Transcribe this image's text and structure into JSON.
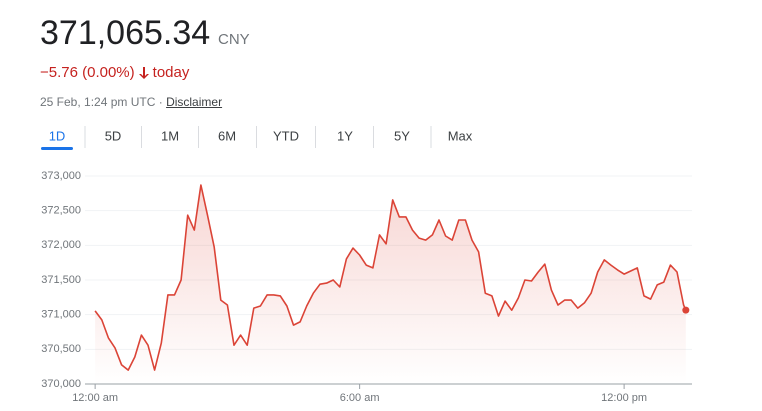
{
  "header": {
    "price": "371,065.34",
    "currency": "CNY",
    "change": "−5.76 (0.00%)",
    "period": "today",
    "timestamp": "25 Feb, 1:24 pm UTC ·",
    "disclaimer": "Disclaimer"
  },
  "tabs": [
    "1D",
    "5D",
    "1M",
    "6M",
    "YTD",
    "1Y",
    "5Y",
    "Max"
  ],
  "selected_tab": 0,
  "chart_data": {
    "type": "line",
    "color": "#db4437",
    "grid": true,
    "x": [
      0,
      0.15,
      0.3,
      0.45,
      0.6,
      0.75,
      0.9,
      1.05,
      1.2,
      1.35,
      1.5,
      1.65,
      1.8,
      1.95,
      2.1,
      2.25,
      2.4,
      2.55,
      2.7,
      2.85,
      3,
      3.15,
      3.3,
      3.45,
      3.6,
      3.75,
      3.9,
      4.05,
      4.2,
      4.35,
      4.5,
      4.65,
      4.8,
      4.95,
      5.1,
      5.25,
      5.4,
      5.55,
      5.7,
      5.85,
      6,
      6.15,
      6.3,
      6.45,
      6.6,
      6.75,
      6.9,
      7.05,
      7.2,
      7.35,
      7.5,
      7.65,
      7.8,
      7.95,
      8.1,
      8.25,
      8.4,
      8.55,
      8.7,
      8.85,
      9,
      9.15,
      9.3,
      9.45,
      9.6,
      9.75,
      9.9,
      10.05,
      10.2,
      10.35,
      10.5,
      10.65,
      10.8,
      10.95,
      11.1,
      11.25,
      11.4,
      11.55,
      11.7,
      11.85,
      12,
      12.15,
      12.3,
      12.45,
      12.6,
      12.75,
      12.9,
      13.05,
      13.2,
      13.35,
      13.4
    ],
    "values": [
      371055,
      370925,
      370665,
      370520,
      370275,
      370200,
      370390,
      370705,
      370560,
      370200,
      370590,
      371285,
      371285,
      371500,
      372435,
      372220,
      372870,
      372435,
      371975,
      371210,
      371140,
      370560,
      370705,
      370560,
      371095,
      371125,
      371285,
      371285,
      371270,
      371125,
      370850,
      370895,
      371125,
      371310,
      371440,
      371455,
      371500,
      371400,
      371805,
      371960,
      371860,
      371715,
      371675,
      372150,
      372020,
      372655,
      372410,
      372410,
      372220,
      372105,
      372075,
      372150,
      372365,
      372135,
      372075,
      372365,
      372365,
      372075,
      371905,
      371310,
      371270,
      370980,
      371195,
      371065,
      371240,
      371500,
      371485,
      371615,
      371730,
      371355,
      371140,
      371210,
      371210,
      371095,
      371170,
      371310,
      371615,
      371790,
      371715,
      371645,
      371585,
      371630,
      371675,
      371270,
      371225,
      371430,
      371470,
      371715,
      371615,
      371140,
      371065.34
    ],
    "xlim": [
      -0.23,
      13.54
    ],
    "xticks": [
      {
        "value": 0,
        "label": "12:00 am"
      },
      {
        "value": 6,
        "label": "6:00 am"
      },
      {
        "value": 12,
        "label": "12:00 pm"
      }
    ],
    "ylim": [
      370000,
      373000
    ],
    "yticks": [
      {
        "value": 370000,
        "label": "370,000"
      },
      {
        "value": 370500,
        "label": "370,500"
      },
      {
        "value": 371000,
        "label": "371,000"
      },
      {
        "value": 371500,
        "label": "371,500"
      },
      {
        "value": 372000,
        "label": "372,000"
      },
      {
        "value": 372500,
        "label": "372,500"
      },
      {
        "value": 373000,
        "label": "373,000"
      }
    ]
  }
}
